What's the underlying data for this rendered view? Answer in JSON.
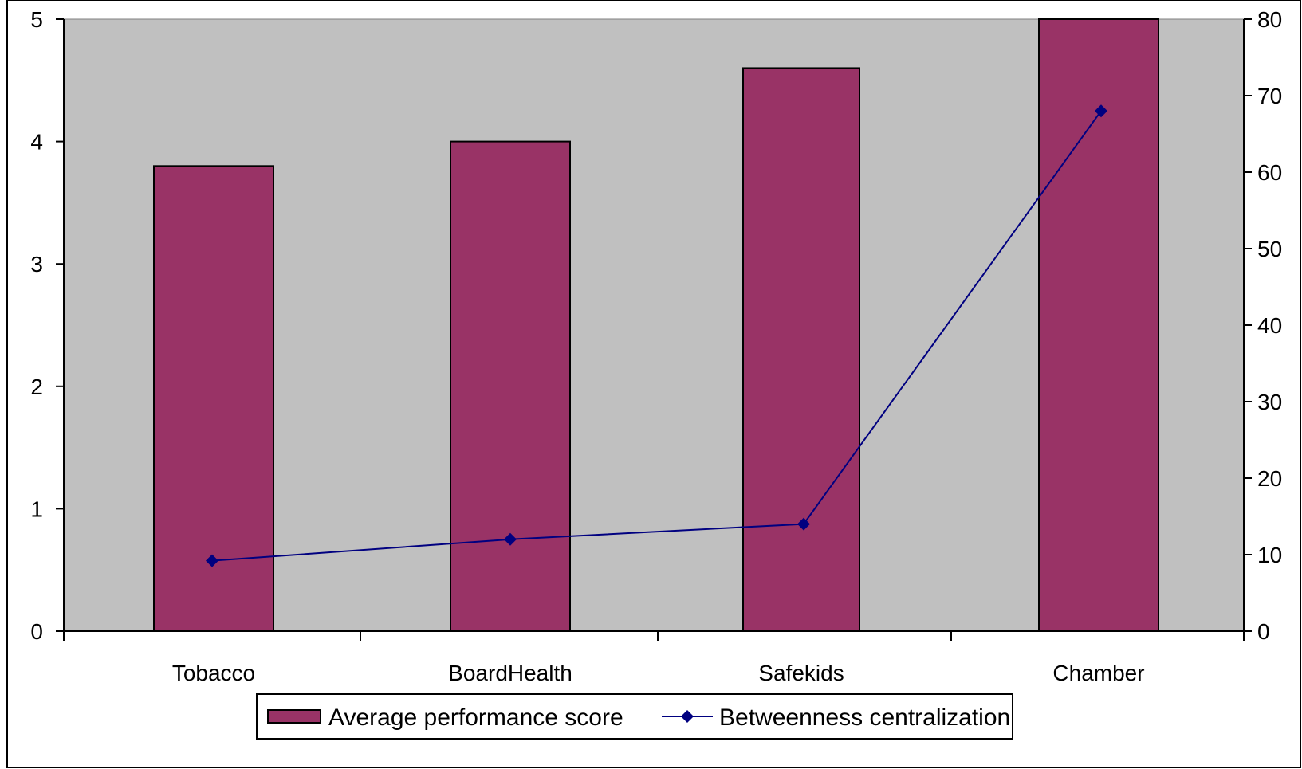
{
  "chart_data": {
    "type": "bar",
    "categories": [
      "Tobacco",
      "BoardHealth",
      "Safekids",
      "Chamber"
    ],
    "series": [
      {
        "name": "Average performance score",
        "kind": "bar",
        "axis": "left",
        "values": [
          3.8,
          4.0,
          4.6,
          5.0
        ],
        "color": "#993366"
      },
      {
        "name": "Betweenness centralization",
        "kind": "line",
        "axis": "right",
        "values": [
          9.2,
          12.0,
          14.0,
          68.0
        ],
        "color": "#000080",
        "marker": "diamond"
      }
    ],
    "y_left": {
      "ylim": [
        0,
        5
      ],
      "ticks": [
        "0",
        "1",
        "2",
        "3",
        "4",
        "5"
      ]
    },
    "y_right": {
      "ylim": [
        0,
        80
      ],
      "ticks": [
        "0",
        "10",
        "20",
        "30",
        "40",
        "50",
        "60",
        "70",
        "80"
      ]
    },
    "plot_background": "#c0c0c0",
    "grid": false,
    "legend_position": "bottom"
  }
}
